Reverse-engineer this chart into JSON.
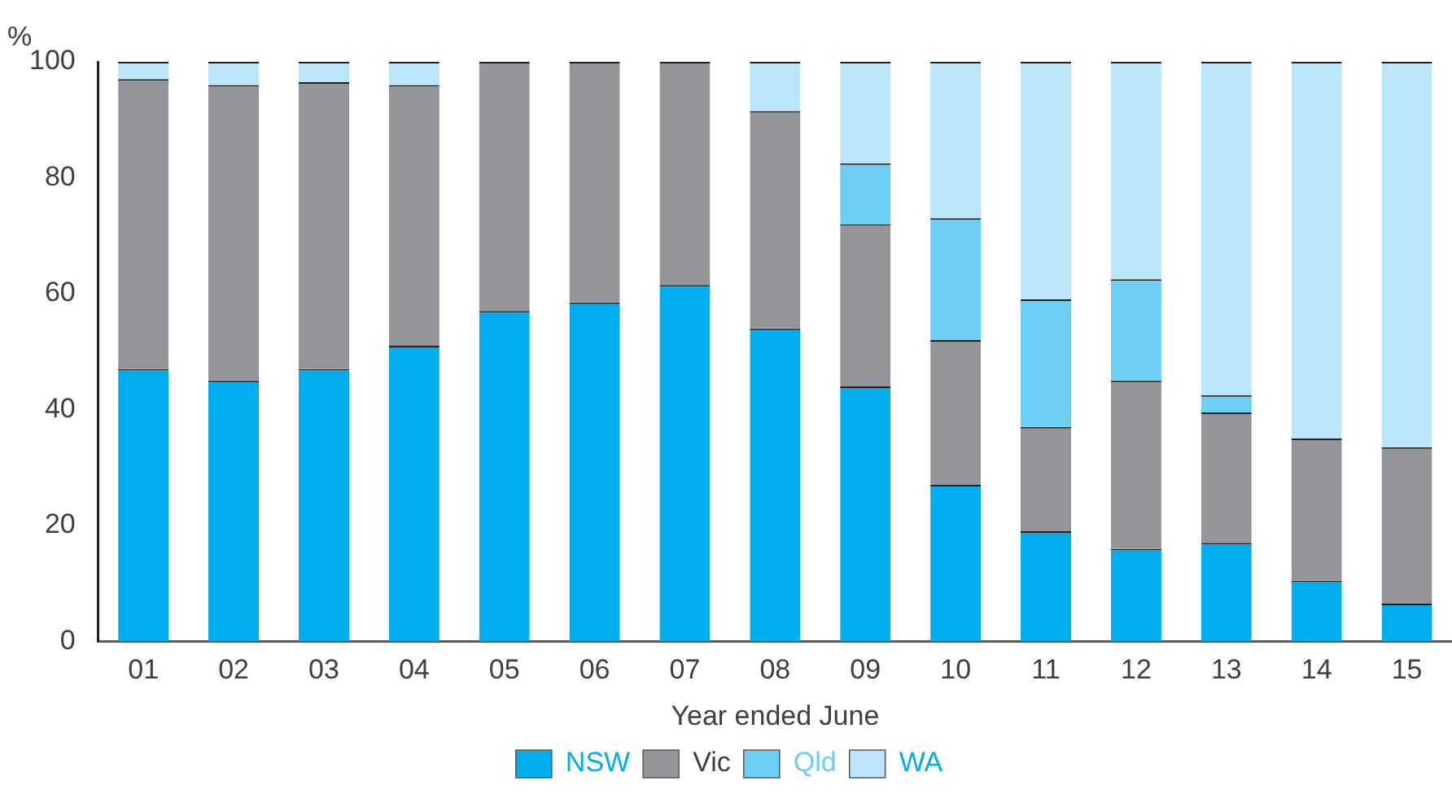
{
  "chart_data": {
    "type": "bar",
    "stacked": true,
    "ylabel": "%",
    "xlabel": "Year ended June",
    "categories": [
      "01",
      "02",
      "03",
      "04",
      "05",
      "06",
      "07",
      "08",
      "09",
      "10",
      "11",
      "12",
      "13",
      "14",
      "15"
    ],
    "series": [
      {
        "name": "NSW",
        "color": "#00aeef",
        "values": [
          47,
          45,
          47,
          51,
          57,
          58.5,
          61.5,
          54,
          44,
          27,
          19,
          16,
          17,
          10.5,
          6.5
        ]
      },
      {
        "name": "Vic",
        "color": "#939598",
        "values": [
          50,
          51,
          49.5,
          45,
          43,
          41.5,
          38.5,
          37.5,
          28,
          25,
          18,
          29,
          22.5,
          24.5,
          27
        ]
      },
      {
        "name": "Qld",
        "color": "#6dcff6",
        "values": [
          0,
          0,
          0,
          0,
          0,
          0,
          0,
          0,
          10.5,
          21,
          22,
          17.5,
          3,
          0,
          0
        ]
      },
      {
        "name": "WA",
        "color": "#bbe5f8",
        "values": [
          3,
          4,
          3.5,
          4,
          0,
          0,
          0,
          8.5,
          17.5,
          27,
          41,
          37.5,
          57.5,
          65,
          66.5
        ]
      }
    ],
    "ylim": [
      0,
      100
    ],
    "yticks": [
      0,
      20,
      40,
      60,
      80,
      100
    ],
    "grid": false,
    "legend": "bottom"
  }
}
